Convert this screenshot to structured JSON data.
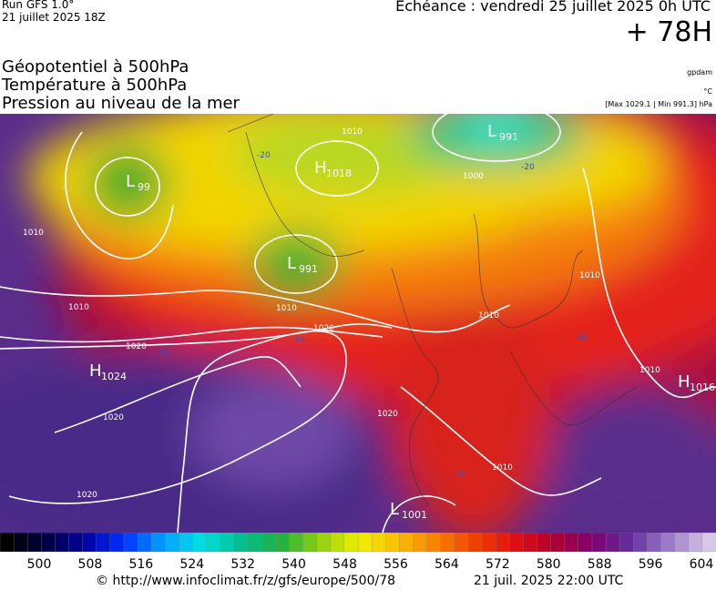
{
  "header": {
    "run": "Run GFS 1.0°",
    "run_date": "21 juillet 2025 18Z",
    "valid": "Echéance : vendredi 25 juillet 2025 0h UTC",
    "lead": "+ 78H"
  },
  "titles": [
    "Géopotentiel à 500hPa",
    "Température à 500hPa",
    "Pression au niveau de la mer"
  ],
  "units": [
    "gpdam",
    "°C",
    "[Max 1029.1 | Min 991.3] hPa"
  ],
  "pressure_centers": [
    {
      "type": "L",
      "value": 99
    },
    {
      "type": "H",
      "value": 1018
    },
    {
      "type": "L",
      "value": 991
    },
    {
      "type": "L",
      "value": 991
    },
    {
      "type": "H",
      "value": 1024
    },
    {
      "type": "H",
      "value": 1016
    },
    {
      "type": "L",
      "value": 1001
    }
  ],
  "isobar_labels": [
    1010,
    1010,
    1020,
    1010,
    1020,
    1020,
    1020,
    1020,
    1000,
    1010,
    1010,
    1010,
    1010,
    1010
  ],
  "isotherm_labels": [
    -20,
    -20,
    -10,
    -10,
    -10,
    -10
  ],
  "colorbar": {
    "ticks": [
      500,
      508,
      516,
      524,
      532,
      540,
      548,
      556,
      564,
      572,
      580,
      588,
      596,
      604
    ]
  },
  "footer": {
    "source": "© http://www.infoclimat.fr/z/gfs/europe/500/78",
    "date": "21 juil. 2025 22:00 UTC"
  }
}
